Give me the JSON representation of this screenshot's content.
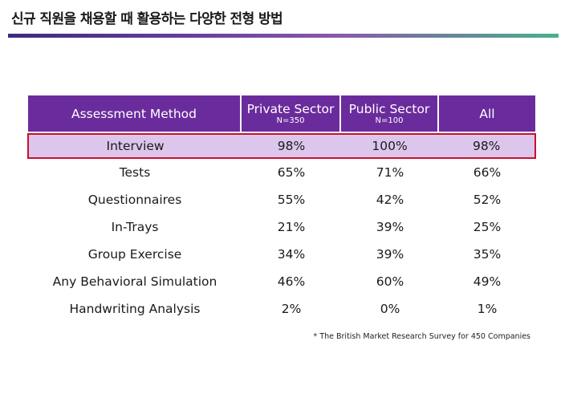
{
  "title": "신규 직원을 채용할 때 활용하는 다양한 전형 방법",
  "table": {
    "headers": [
      {
        "main": "Assessment Method",
        "sub": ""
      },
      {
        "main": "Private Sector",
        "sub": "N=350"
      },
      {
        "main": "Public Sector",
        "sub": "N=100"
      },
      {
        "main": "All",
        "sub": ""
      }
    ],
    "rows": [
      {
        "method": "Interview",
        "private": "98%",
        "public": "100%",
        "all": "98%"
      },
      {
        "method": "Tests",
        "private": "65%",
        "public": "71%",
        "all": "66%"
      },
      {
        "method": "Questionnaires",
        "private": "55%",
        "public": "42%",
        "all": "52%"
      },
      {
        "method": "In-Trays",
        "private": "21%",
        "public": "39%",
        "all": "25%"
      },
      {
        "method": "Group Exercise",
        "private": "34%",
        "public": "39%",
        "all": "35%"
      },
      {
        "method": "Any Behavioral Simulation",
        "private": "46%",
        "public": "60%",
        "all": "49%"
      },
      {
        "method": "Handwriting Analysis",
        "private": "2%",
        "public": "0%",
        "all": "1%"
      }
    ]
  },
  "footnote": "* The British Market Research Survey for 450 Companies",
  "colors": {
    "header_bg": "#6a2c9c",
    "highlight_bg": "#dcc6ec",
    "highlight_border": "#c8102e"
  }
}
